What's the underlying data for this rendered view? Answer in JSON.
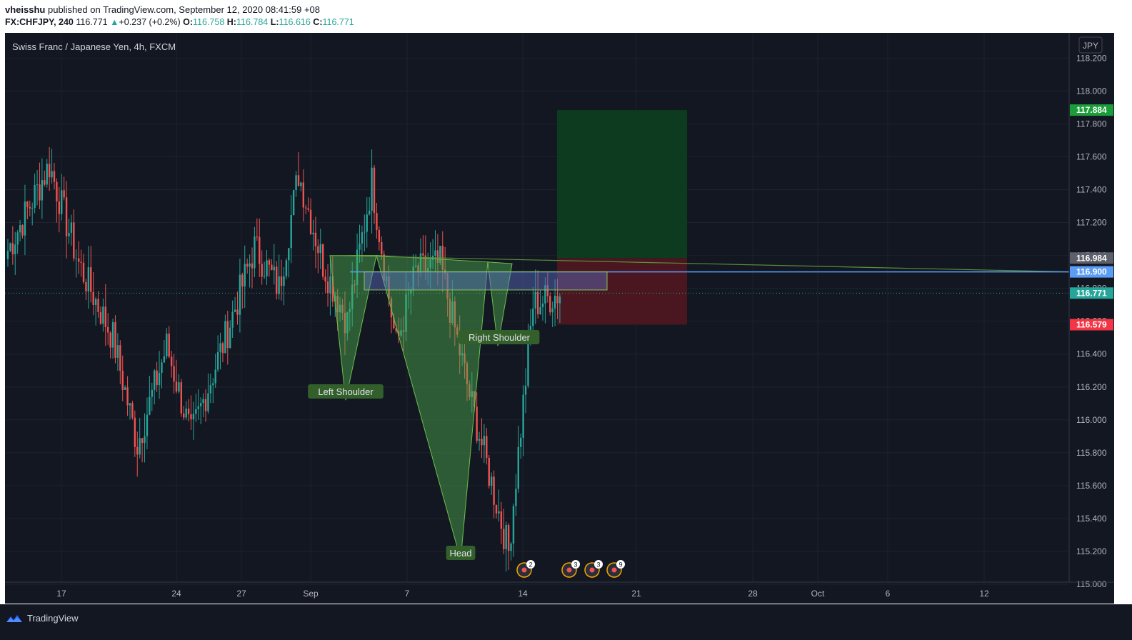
{
  "header": {
    "author": "vheisshu",
    "published": "published on TradingView.com, September 12, 2020 08:41:59 +08",
    "symbol": "FX:CHFJPY, 240",
    "last": "116.771",
    "change_arrow": "▲",
    "change": "+0.237 (+0.2%)",
    "o_label": "O:",
    "o_value": "116.758",
    "h_label": "H:",
    "h_value": "116.784",
    "l_label": "L:",
    "l_value": "116.616",
    "c_label": "C:",
    "c_value": "116.771"
  },
  "footer": {
    "brand": "TradingView",
    "logo_icon": "tradingview-logo-icon"
  },
  "colors": {
    "bg": "#131722",
    "up": "#26a69a",
    "down": "#ef5350",
    "grid": "#1e222d",
    "axis_text": "#b2b5be",
    "pattern_fill": "#4caf50",
    "target": "#0d3b1f",
    "stop": "#4a1620",
    "entry_line": "#5b9cf6",
    "neckline": "#5c8f3a"
  },
  "chart_data": {
    "type": "candlestick",
    "title": "Swiss Franc / Japanese Yen, 4h, FXCM",
    "currency_label": "JPY",
    "y_ticks": [
      "115.000",
      "115.200",
      "115.400",
      "115.600",
      "115.800",
      "116.000",
      "116.200",
      "116.400",
      "116.600",
      "116.800",
      "117.000",
      "117.200",
      "117.400",
      "117.600",
      "117.800",
      "118.000",
      "118.200"
    ],
    "x_ticks": [
      "17",
      "24",
      "27",
      "Sep",
      "7",
      "14",
      "21",
      "28",
      "Oct",
      "6",
      "12"
    ],
    "ylim": [
      114.88,
      118.22
    ],
    "price_labels": [
      {
        "value": "117.884",
        "color": "#1b9e3a"
      },
      {
        "value": "116.984",
        "color": "#5d606b"
      },
      {
        "value": "116.900",
        "color": "#5b9cf6"
      },
      {
        "value": "116.771",
        "color": "#26a69a"
      },
      {
        "value": "116.579",
        "color": "#f23645"
      }
    ],
    "patterns": [
      {
        "label": "Left Shoulder",
        "point": 116.12
      },
      {
        "label": "Head",
        "point": 115.15
      },
      {
        "label": "Right Shoulder",
        "point": 116.45
      }
    ],
    "long_position": {
      "entry": 116.984,
      "target": 117.884,
      "stop": 116.579
    },
    "entry_line": 116.9,
    "event_markers": [
      "2",
      "3",
      "3",
      "9"
    ],
    "segments": [
      {
        "n": 18,
        "from": 117.0,
        "to": 117.55
      },
      {
        "n": 12,
        "from": 117.55,
        "to": 116.95
      },
      {
        "n": 14,
        "from": 116.95,
        "to": 116.5
      },
      {
        "n": 10,
        "from": 116.5,
        "to": 115.85
      },
      {
        "n": 12,
        "from": 115.85,
        "to": 116.45
      },
      {
        "n": 10,
        "from": 116.45,
        "to": 115.9
      },
      {
        "n": 14,
        "from": 115.9,
        "to": 116.5
      },
      {
        "n": 12,
        "from": 116.5,
        "to": 117.05
      },
      {
        "n": 10,
        "from": 117.05,
        "to": 116.8
      },
      {
        "n": 8,
        "from": 116.8,
        "to": 117.5
      },
      {
        "n": 10,
        "from": 117.5,
        "to": 116.95
      },
      {
        "n": 10,
        "from": 116.95,
        "to": 116.6
      },
      {
        "n": 10,
        "from": 116.6,
        "to": 117.45
      },
      {
        "n": 10,
        "from": 117.45,
        "to": 116.45
      },
      {
        "n": 8,
        "from": 116.45,
        "to": 116.9
      },
      {
        "n": 10,
        "from": 116.9,
        "to": 116.95
      },
      {
        "n": 12,
        "from": 116.95,
        "to": 116.15
      },
      {
        "n": 16,
        "from": 116.15,
        "to": 115.2
      },
      {
        "n": 10,
        "from": 115.2,
        "to": 116.7
      },
      {
        "n": 11,
        "from": 116.7,
        "to": 116.771
      }
    ]
  }
}
